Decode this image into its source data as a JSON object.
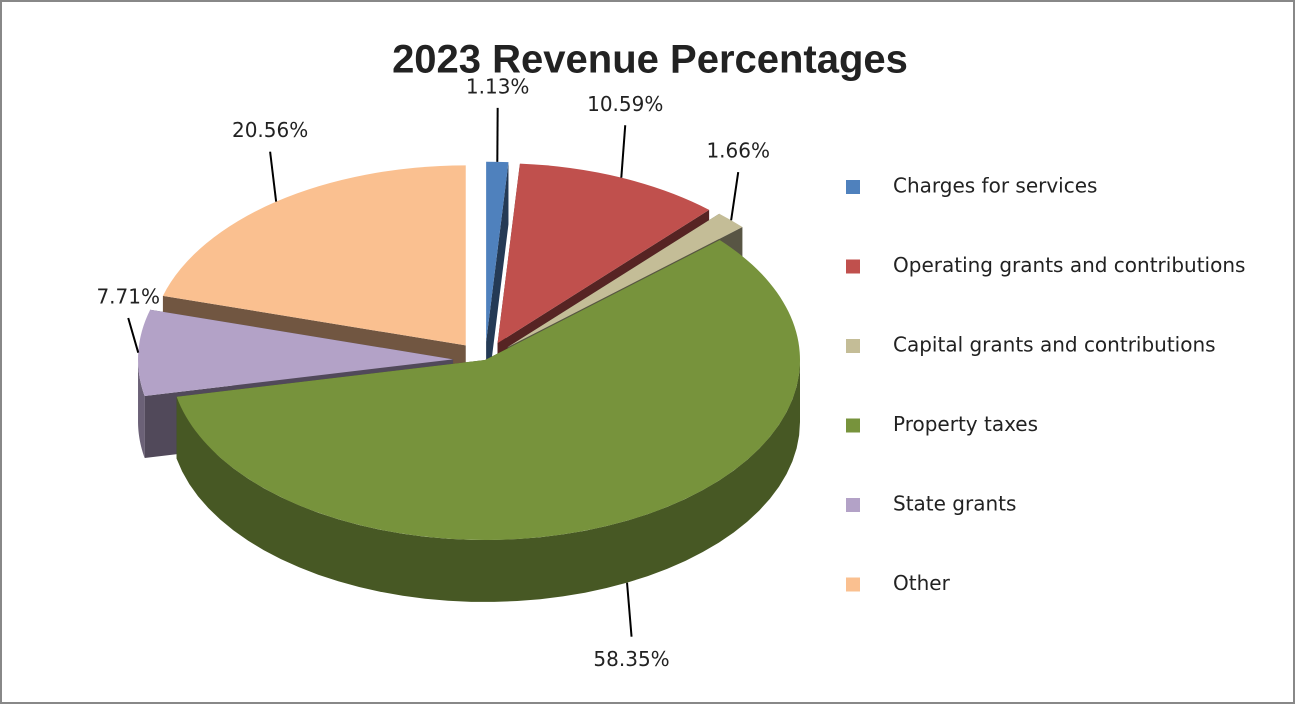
{
  "chart_data": {
    "type": "pie",
    "title": "2023 Revenue Percentages",
    "categories": [
      "Charges for services",
      "Operating grants and contributions",
      "Capital grants and contributions",
      "Property taxes",
      "State grants",
      "Other"
    ],
    "values": [
      1.13,
      10.59,
      1.66,
      58.35,
      7.71,
      20.56
    ],
    "value_labels": [
      "1.13%",
      "10.59%",
      "1.66%",
      "58.35%",
      "7.71%",
      "20.56%"
    ],
    "colors": [
      "#4f81bd",
      "#c0504d",
      "#c4bd97",
      "#77933c",
      "#b3a2c7",
      "#fac090"
    ]
  }
}
